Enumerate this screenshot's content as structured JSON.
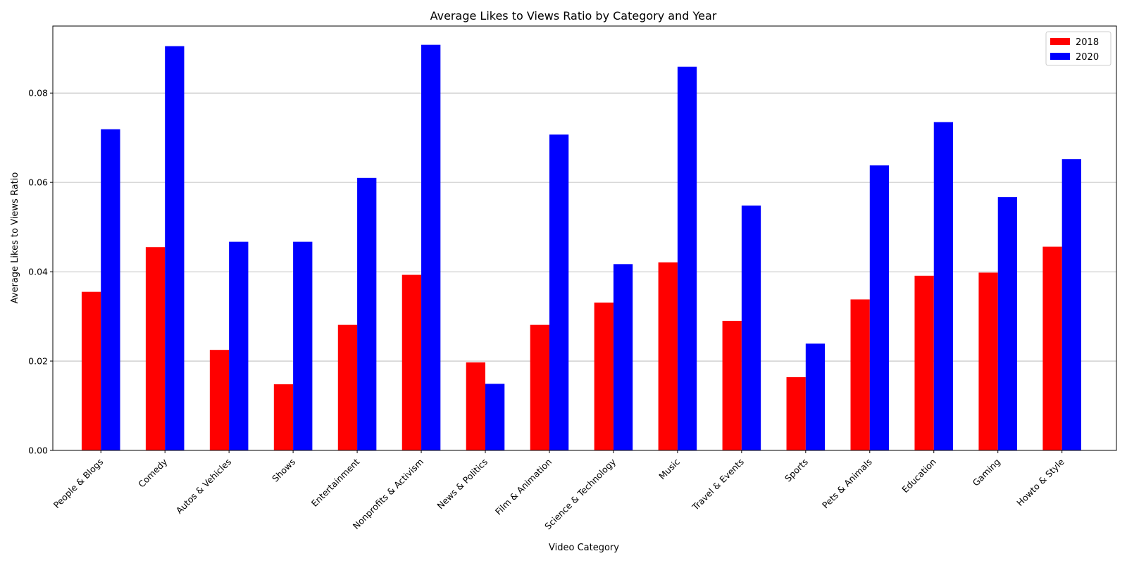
{
  "chart_data": {
    "type": "bar",
    "title": "Average Likes to Views Ratio by Category and Year",
    "xlabel": "Video Category",
    "ylabel": "Average Likes to Views Ratio",
    "ylim": [
      0,
      0.095
    ],
    "yticks": [
      "0.00",
      "0.02",
      "0.04",
      "0.06",
      "0.08"
    ],
    "grid": "y",
    "legend_position": "top-right",
    "categories": [
      "People & Blogs",
      "Comedy",
      "Autos & Vehicles",
      "Shows",
      "Entertainment",
      "Nonprofits & Activism",
      "News & Politics",
      "Film & Animation",
      "Science & Technology",
      "Music",
      "Travel & Events",
      "Sports",
      "Pets & Animals",
      "Education",
      "Gaming",
      "Howto & Style"
    ],
    "series": [
      {
        "name": "2018",
        "color": "#ff0000",
        "values": [
          0.0355,
          0.0455,
          0.0225,
          0.0148,
          0.0281,
          0.0393,
          0.0197,
          0.0281,
          0.0331,
          0.0421,
          0.029,
          0.0164,
          0.0338,
          0.0391,
          0.0398,
          0.0456
        ]
      },
      {
        "name": "2020",
        "color": "#0000ff",
        "values": [
          0.0719,
          0.0905,
          0.0467,
          0.0467,
          0.061,
          0.0908,
          0.0149,
          0.0707,
          0.0417,
          0.0859,
          0.0548,
          0.0239,
          0.0638,
          0.0735,
          0.0567,
          0.0652
        ]
      }
    ]
  }
}
